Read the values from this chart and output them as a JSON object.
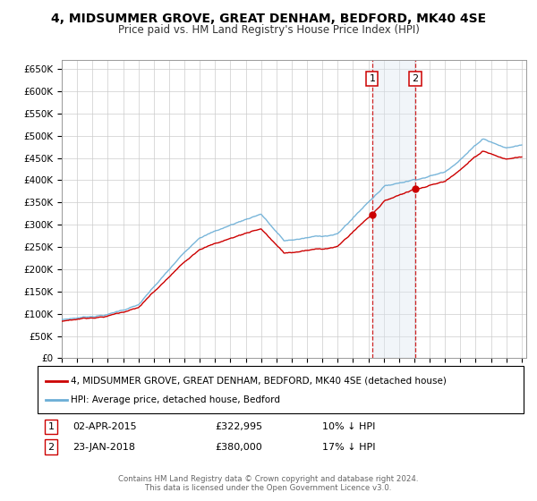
{
  "title": "4, MIDSUMMER GROVE, GREAT DENHAM, BEDFORD, MK40 4SE",
  "subtitle": "Price paid vs. HM Land Registry's House Price Index (HPI)",
  "ylabel_ticks": [
    "£0",
    "£50K",
    "£100K",
    "£150K",
    "£200K",
    "£250K",
    "£300K",
    "£350K",
    "£400K",
    "£450K",
    "£500K",
    "£550K",
    "£600K",
    "£650K"
  ],
  "ytick_vals": [
    0,
    50000,
    100000,
    150000,
    200000,
    250000,
    300000,
    350000,
    400000,
    450000,
    500000,
    550000,
    600000,
    650000
  ],
  "purchase1_date": 2015.25,
  "purchase1_price": 322995,
  "purchase2_date": 2018.07,
  "purchase2_price": 380000,
  "legend1": "4, MIDSUMMER GROVE, GREAT DENHAM, BEDFORD, MK40 4SE (detached house)",
  "legend2": "HPI: Average price, detached house, Bedford",
  "footer": "Contains HM Land Registry data © Crown copyright and database right 2024.\nThis data is licensed under the Open Government Licence v3.0.",
  "hpi_color": "#6baed6",
  "price_color": "#cc0000",
  "marker_box_color": "#cc0000",
  "shaded_region_color": "#dce6f1",
  "grid_color": "#cccccc",
  "background_color": "#ffffff"
}
